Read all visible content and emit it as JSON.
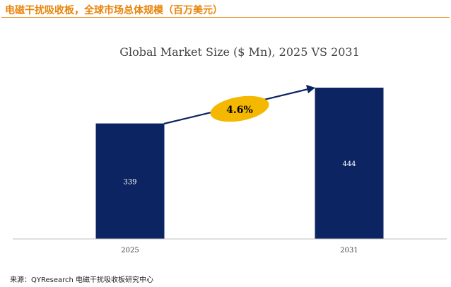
{
  "header": {
    "title": "电磁干扰吸收板，全球市场总体规模（百万美元）"
  },
  "footer": {
    "source": "来源：QYResearch 电磁干扰吸收板研究中心"
  },
  "colors": {
    "accent": "#e8840a",
    "bar": "#0c2461",
    "growth_ellipse": "#f5b800",
    "axis": "#bfbfbf"
  },
  "chart_data": {
    "type": "bar",
    "title": "Global Market Size ($ Mn), 2025 VS 2031",
    "categories": [
      "2025",
      "2031"
    ],
    "values": [
      339,
      444
    ],
    "data_labels": [
      "339",
      "444"
    ],
    "ylim": [
      0,
      444
    ],
    "xlabel": "",
    "ylabel": "",
    "grid": false,
    "annotation": {
      "text": "4.6%",
      "type": "growth-arrow"
    }
  }
}
